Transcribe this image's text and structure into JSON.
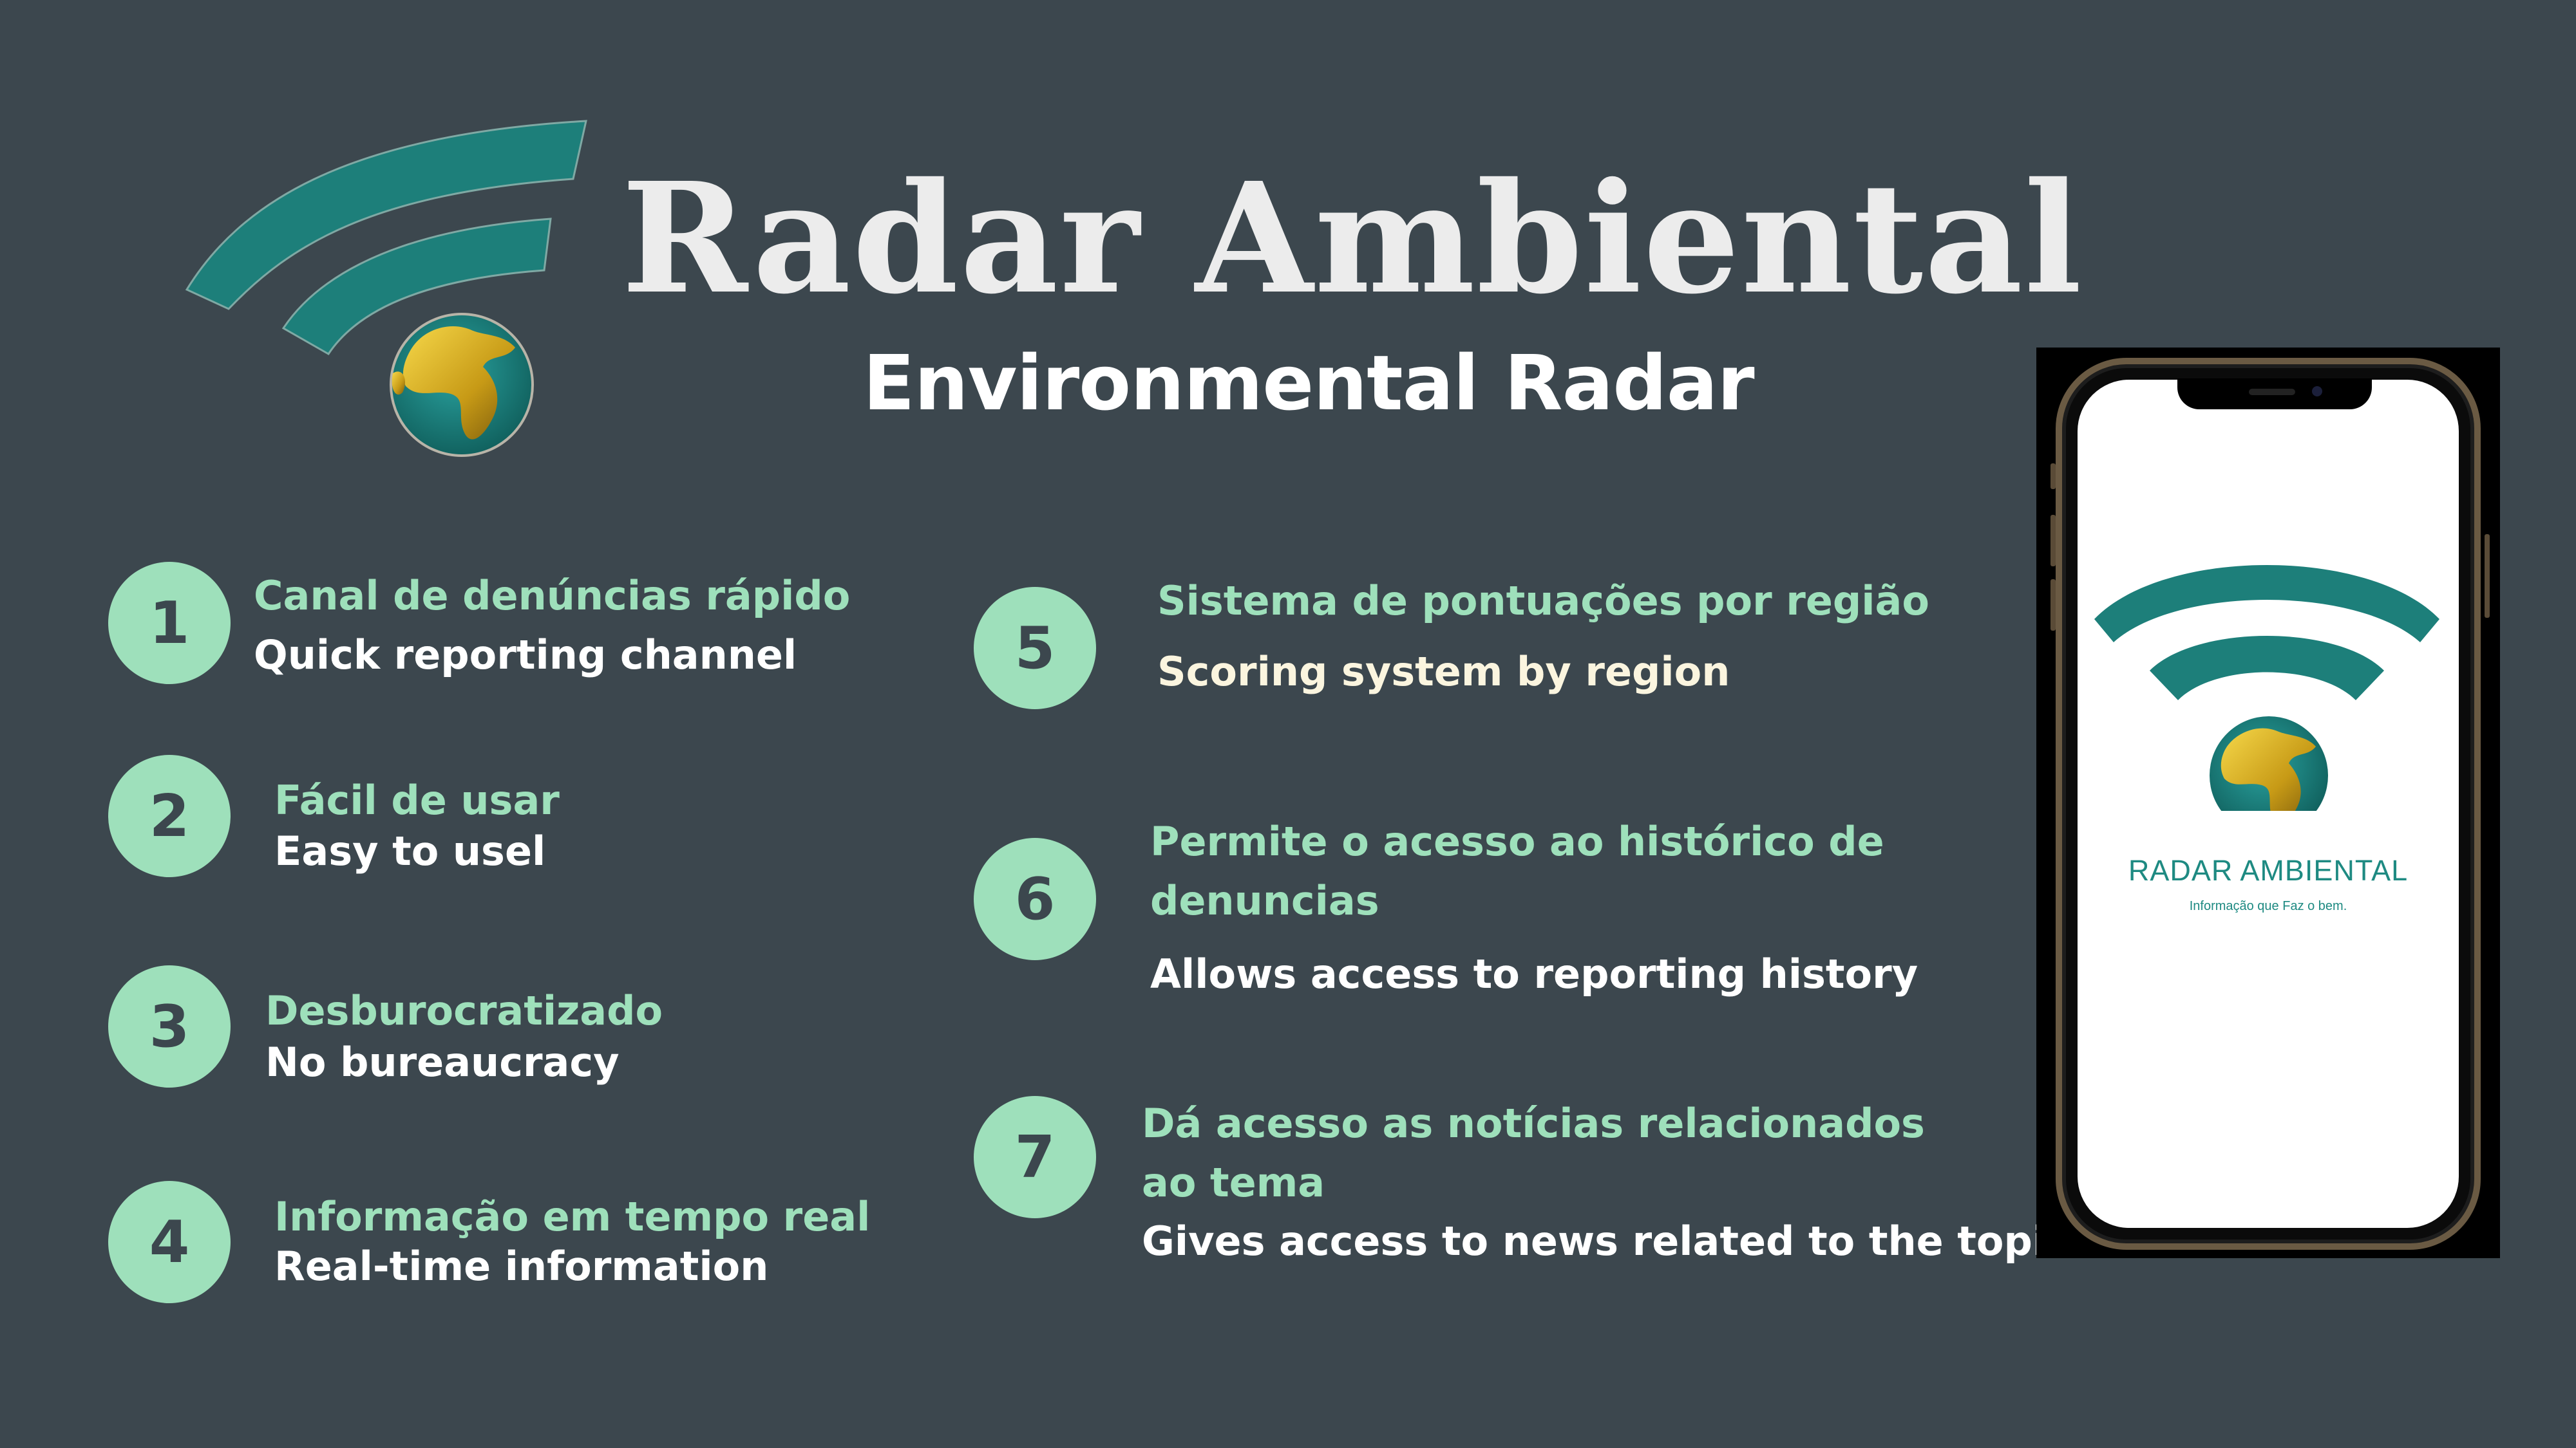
{
  "header": {
    "title": "Radar Ambiental",
    "subtitle": "Environmental Radar"
  },
  "features": [
    {
      "number": "1",
      "pt": "Canal de denúncias rápido",
      "en": "Quick reporting channel"
    },
    {
      "number": "2",
      "pt": "Fácil de usar",
      "en": "Easy to usel"
    },
    {
      "number": "3",
      "pt": "Desburocratizado",
      "en": "No bureaucracy"
    },
    {
      "number": "4",
      "pt": "Informação em tempo real",
      "en": "Real-time information"
    },
    {
      "number": "5",
      "pt": "Sistema de pontuações por região",
      "en": "Scoring system by region"
    },
    {
      "number": "6",
      "pt_line1": "Permite o acesso ao histórico de",
      "pt_line2": "denuncias",
      "en": "Allows access to reporting history"
    },
    {
      "number": "7",
      "pt_line1": "Dá acesso as notícias relacionados",
      "pt_line2": "ao tema",
      "en": "Gives access to news related to the topic"
    }
  ],
  "phone": {
    "brand": "RADAR AMBIENTAL",
    "tagline": "Informação que Faz o bem."
  },
  "colors": {
    "background": "#3c474e",
    "accent_mint": "#9ee0bb",
    "logo_teal": "#1d7f7a",
    "text_light": "#ececec"
  },
  "icons": {
    "logo": "wifi-signal-globe-icon"
  }
}
